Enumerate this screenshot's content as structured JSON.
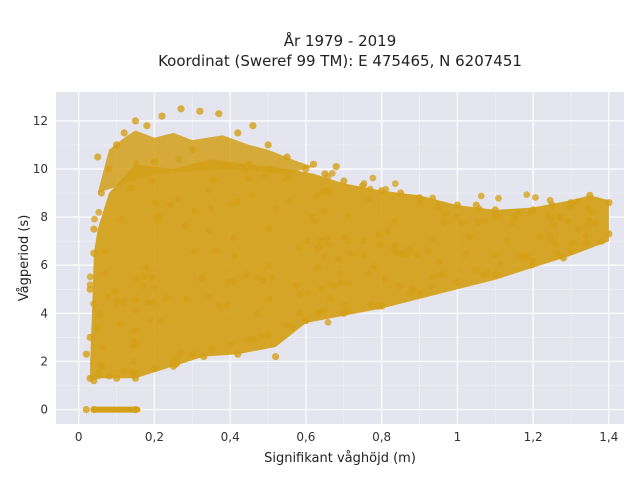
{
  "chart_data": {
    "type": "scatter",
    "title_line1": "År 1979 - 2019",
    "title_line2": "Koordinat (Sweref 99 TM): E 475465, N 6207451",
    "xlabel": "Signifikant våghöjd (m)",
    "ylabel": "Vågperiod (s)",
    "xlim": [
      -0.06,
      1.44
    ],
    "ylim": [
      -0.6,
      13.2
    ],
    "x_ticks": [
      0,
      0.2,
      0.4,
      0.6,
      0.8,
      1,
      1.2,
      1.4
    ],
    "x_tick_labels": [
      "0",
      "0,2",
      "0,4",
      "0,6",
      "0,8",
      "1",
      "1,2",
      "1,4"
    ],
    "y_ticks": [
      0,
      2,
      4,
      6,
      8,
      10,
      12
    ],
    "y_tick_labels": [
      "0",
      "2",
      "4",
      "6",
      "8",
      "10",
      "12"
    ],
    "grid": true,
    "marker_color": "#d4a017",
    "plot_background": "#e5e5f0",
    "series": [
      {
        "description": "dense point cloud",
        "points": [
          [
            0.03,
            1.3
          ],
          [
            0.04,
            1.2
          ],
          [
            0.05,
            1.5
          ],
          [
            0.06,
            1.8
          ],
          [
            0.08,
            1.4
          ],
          [
            0.1,
            1.3
          ],
          [
            0.12,
            1.6
          ],
          [
            0.15,
            1.5
          ],
          [
            0.2,
            1.7
          ],
          [
            0.25,
            2.0
          ],
          [
            0.3,
            2.3
          ],
          [
            0.35,
            2.5
          ],
          [
            0.4,
            2.7
          ],
          [
            0.45,
            2.9
          ],
          [
            0.5,
            3.1
          ],
          [
            0.55,
            3.5
          ],
          [
            0.6,
            3.7
          ],
          [
            0.7,
            4.0
          ],
          [
            0.8,
            4.3
          ],
          [
            0.9,
            4.8
          ],
          [
            1.0,
            5.3
          ],
          [
            1.1,
            5.6
          ],
          [
            1.2,
            6.2
          ],
          [
            1.3,
            6.6
          ],
          [
            1.4,
            7.3
          ],
          [
            0.04,
            7.5
          ],
          [
            0.06,
            9.0
          ],
          [
            0.08,
            10.0
          ],
          [
            0.1,
            11.0
          ],
          [
            0.12,
            11.5
          ],
          [
            0.15,
            12.0
          ],
          [
            0.18,
            11.8
          ],
          [
            0.22,
            12.2
          ],
          [
            0.27,
            12.5
          ],
          [
            0.32,
            12.4
          ],
          [
            0.37,
            12.3
          ],
          [
            0.42,
            11.5
          ],
          [
            0.46,
            11.8
          ],
          [
            0.5,
            11.0
          ],
          [
            0.55,
            10.5
          ],
          [
            0.6,
            10.0
          ],
          [
            0.65,
            9.8
          ],
          [
            0.7,
            9.5
          ],
          [
            0.8,
            9.1
          ],
          [
            0.9,
            8.8
          ],
          [
            1.0,
            8.5
          ],
          [
            1.1,
            8.3
          ],
          [
            1.2,
            8.3
          ],
          [
            1.3,
            8.6
          ],
          [
            1.35,
            8.9
          ],
          [
            1.4,
            8.6
          ],
          [
            0.02,
            2.3
          ],
          [
            0.03,
            3.0
          ],
          [
            0.03,
            5.0
          ],
          [
            0.04,
            6.5
          ],
          [
            0.05,
            10.5
          ],
          [
            0.2,
            10.3
          ],
          [
            0.3,
            10.8
          ],
          [
            0.45,
            10.2
          ],
          [
            0.62,
            10.2
          ],
          [
            0.68,
            10.1
          ],
          [
            0.75,
            9.3
          ],
          [
            0.85,
            9.0
          ],
          [
            0.95,
            8.4
          ],
          [
            1.05,
            8.5
          ],
          [
            1.15,
            8.0
          ],
          [
            1.25,
            8.5
          ],
          [
            1.32,
            7.5
          ],
          [
            1.38,
            7.0
          ],
          [
            1.28,
            6.3
          ],
          [
            1.18,
            6.4
          ],
          [
            0.52,
            2.2
          ],
          [
            0.42,
            2.3
          ],
          [
            0.33,
            2.2
          ],
          [
            0.25,
            1.8
          ],
          [
            0.15,
            1.3
          ],
          [
            0.02,
            0.0
          ],
          [
            0.04,
            0.0
          ],
          [
            0.15,
            0.0
          ]
        ]
      }
    ]
  }
}
